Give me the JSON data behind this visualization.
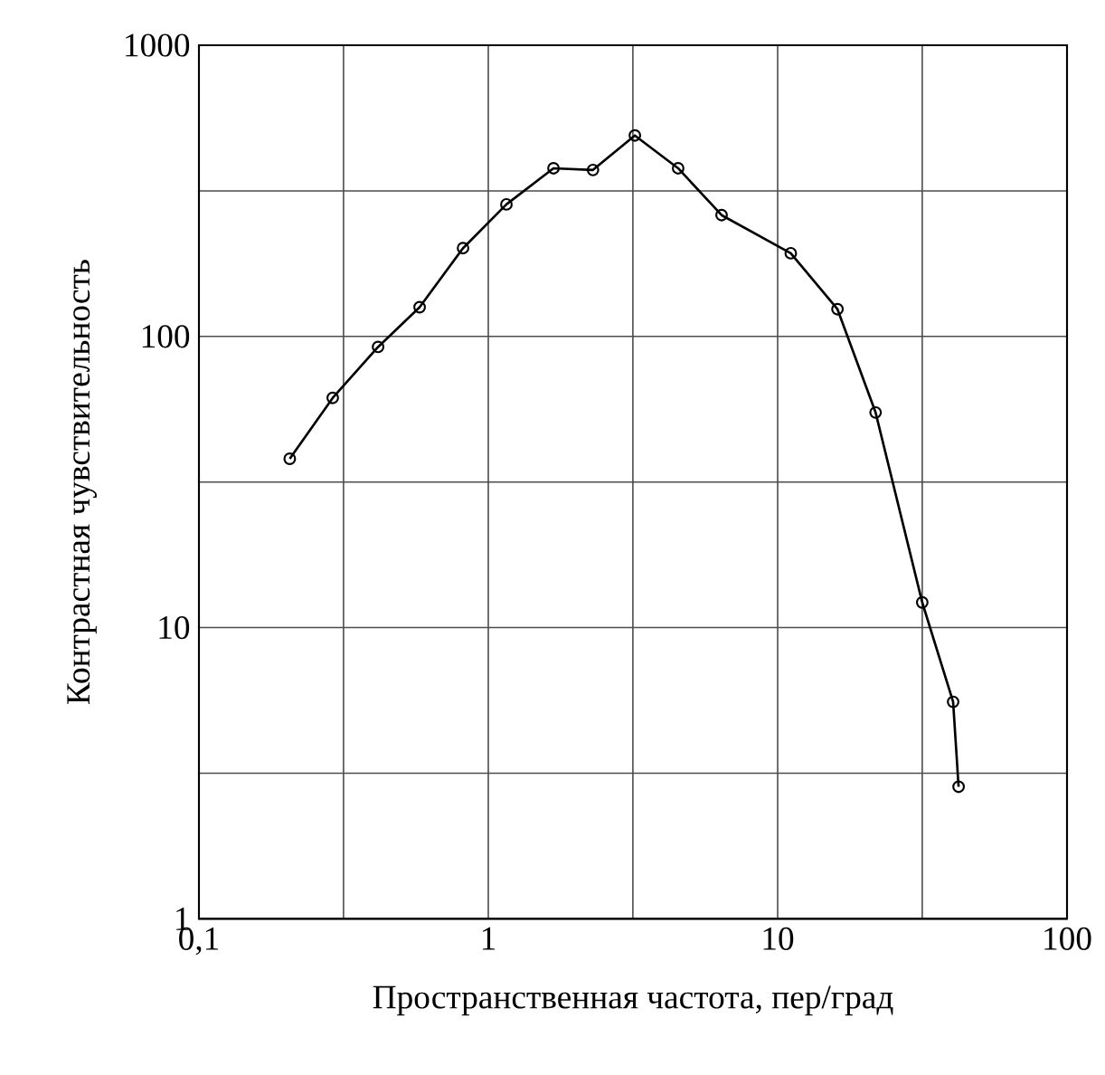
{
  "chart_data": {
    "type": "line",
    "xlabel": "Пространственная частота, пер/град",
    "ylabel": "Контрастная чувствительность",
    "log": "xy",
    "grid": true,
    "marker": "circle",
    "line_style": "solid",
    "xlim": [
      0.1,
      100
    ],
    "ylim": [
      1,
      1000
    ],
    "xticks": [
      {
        "value": 0.1,
        "label": "0,1"
      },
      {
        "value": 0.316,
        "label": null
      },
      1,
      {
        "value": 3.16,
        "label": null
      },
      10,
      {
        "value": 31.6,
        "label": null
      },
      100
    ],
    "yticks": [
      1,
      {
        "value": 3.16,
        "label": null
      },
      10,
      {
        "value": 31.6,
        "label": null
      },
      100,
      {
        "value": 316,
        "label": null
      },
      1000
    ],
    "series": [
      {
        "color": "#000000",
        "x": [
          0.206,
          0.29,
          0.416,
          0.579,
          0.818,
          1.155,
          1.68,
          2.3,
          3.21,
          4.53,
          6.4,
          11.1,
          16.1,
          21.8,
          31.6,
          40.4,
          42.2
        ],
        "values": [
          38,
          61.5,
          92,
          126,
          201,
          284,
          378,
          373,
          490,
          378,
          261,
          193,
          124,
          54.8,
          12.2,
          5.56,
          2.84
        ]
      }
    ]
  }
}
